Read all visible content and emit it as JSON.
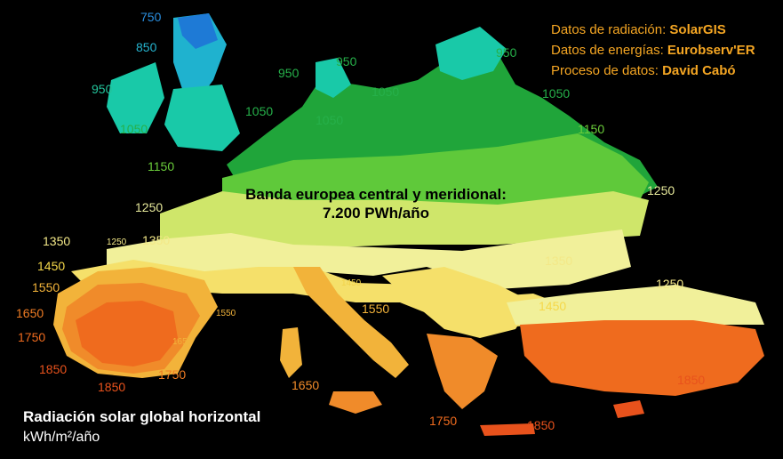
{
  "credits": [
    {
      "label": "Datos de radiación: ",
      "value": "SolarGIS"
    },
    {
      "label": "Datos de energías: ",
      "value": "Eurobserv'ER"
    },
    {
      "label": "Proceso de datos: ",
      "value": "David Cabó"
    }
  ],
  "band": {
    "line1": "Banda europea central y meridional:",
    "line2": "7.200 PWh/año"
  },
  "legend": {
    "title": "Radiación solar global horizontal",
    "units": "kWh/m²/año"
  },
  "colors": {
    "z750": "#1e7ad6",
    "z850": "#1fb2cf",
    "z950": "#19c9a8",
    "z1050": "#20a53a",
    "z1150": "#5fc93a",
    "z1250": "#cfe66a",
    "z1350": "#f1f09a",
    "z1450": "#f5e06a",
    "z1550": "#f2b33a",
    "z1650": "#f08b2a",
    "z1750": "#ef6b1e",
    "z1850": "#e8521c",
    "credit": "#f5a623"
  },
  "isolines": [
    {
      "text": "750",
      "size": "normal",
      "color": "#2a8fe0"
    },
    {
      "text": "850",
      "size": "normal",
      "color": "#25b4cf"
    },
    {
      "text": "950",
      "size": "normal",
      "color": "#22c39a"
    },
    {
      "text": "1050",
      "size": "normal",
      "color": "#26b04a"
    },
    {
      "text": "950",
      "size": "normal",
      "color": "#26b04a"
    },
    {
      "text": "950",
      "size": "normal",
      "color": "#26b04a"
    },
    {
      "text": "1050",
      "size": "normal",
      "color": "#26b04a"
    },
    {
      "text": "950",
      "size": "normal",
      "color": "#26b04a"
    },
    {
      "text": "1050",
      "size": "normal",
      "color": "#26b04a"
    },
    {
      "text": "1050",
      "size": "normal",
      "color": "#26b04a"
    },
    {
      "text": "1050",
      "size": "normal",
      "color": "#26b04a"
    },
    {
      "text": "1150",
      "size": "normal",
      "color": "#6acc3a"
    },
    {
      "text": "1150",
      "size": "normal",
      "color": "#6acc3a"
    },
    {
      "text": "1250",
      "size": "normal",
      "color": "#e6e89a"
    },
    {
      "text": "1250",
      "size": "normal",
      "color": "#e6e89a"
    },
    {
      "text": "1350",
      "size": "normal",
      "color": "#f3e888"
    },
    {
      "text": "1250",
      "size": "small",
      "color": "#f3e888"
    },
    {
      "text": "1350",
      "size": "normal",
      "color": "#f3e888"
    },
    {
      "text": "1450",
      "size": "normal",
      "color": "#f5d84a"
    },
    {
      "text": "1550",
      "size": "normal",
      "color": "#f2b33a"
    },
    {
      "text": "1650",
      "size": "normal",
      "color": "#ef7c24"
    },
    {
      "text": "1750",
      "size": "normal",
      "color": "#ef6b1e"
    },
    {
      "text": "1850",
      "size": "normal",
      "color": "#e8521c"
    },
    {
      "text": "1850",
      "size": "normal",
      "color": "#e8521c"
    },
    {
      "text": "1750",
      "size": "normal",
      "color": "#ef7c24"
    },
    {
      "text": "1650",
      "size": "small",
      "color": "#f2b33a"
    },
    {
      "text": "1550",
      "size": "small",
      "color": "#f2b33a"
    },
    {
      "text": "1450",
      "size": "small",
      "color": "#f2d24a"
    },
    {
      "text": "1550",
      "size": "normal",
      "color": "#f2b33a"
    },
    {
      "text": "1650",
      "size": "normal",
      "color": "#f08b2a"
    },
    {
      "text": "1350",
      "size": "normal",
      "color": "#f3e888"
    },
    {
      "text": "1450",
      "size": "normal",
      "color": "#f5d84a"
    },
    {
      "text": "1250",
      "size": "normal",
      "color": "#f3e888"
    },
    {
      "text": "1750",
      "size": "normal",
      "color": "#ef6b1e"
    },
    {
      "text": "1850",
      "size": "normal",
      "color": "#e8521c"
    },
    {
      "text": "1850",
      "size": "normal",
      "color": "#e8521c"
    }
  ]
}
